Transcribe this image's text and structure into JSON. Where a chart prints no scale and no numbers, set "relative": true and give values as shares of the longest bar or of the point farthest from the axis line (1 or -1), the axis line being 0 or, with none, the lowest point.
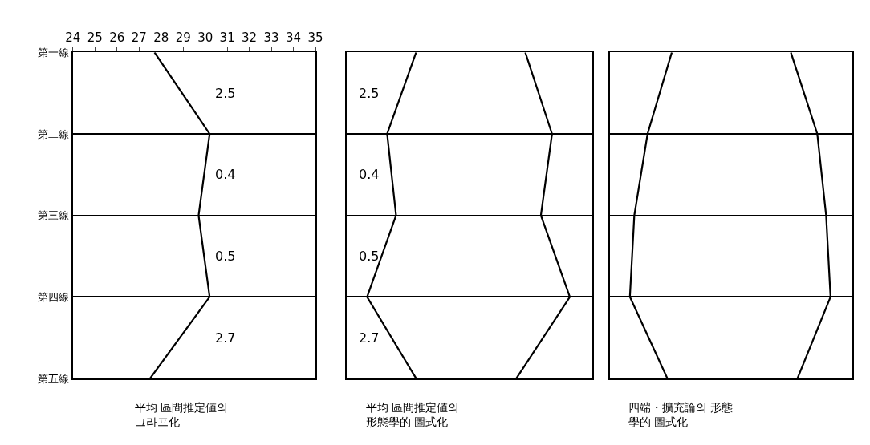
{
  "chart_data": [
    {
      "type": "line",
      "orientation": "horizontal",
      "title": "平均 區間推定値의\n그라프化",
      "categories": [
        "第一線",
        "第二線",
        "第三線",
        "第四線",
        "第五線"
      ],
      "values": [
        27.7,
        30.2,
        29.7,
        30.2,
        27.5
      ],
      "color": "#000000",
      "xlim": [
        24,
        35
      ],
      "xticks": [
        24,
        25,
        26,
        27,
        28,
        29,
        30,
        31,
        32,
        33,
        34,
        35
      ],
      "grid": "y",
      "annotations": [
        "2.5",
        "0.4",
        "0.5",
        "2.7"
      ]
    },
    {
      "type": "line",
      "orientation": "horizontal",
      "relative": true,
      "title": "平均 區間推定値의\n形態學的 圖式化",
      "categories": [
        null,
        null,
        null,
        null,
        null
      ],
      "grid": "y",
      "series": [
        {
          "color": "#000000",
          "values": [
            0.31,
            0.18,
            0.22,
            0.09,
            0.31
          ]
        },
        {
          "color": "#000000",
          "values": [
            0.8,
            0.92,
            0.87,
            1.0,
            0.76
          ]
        }
      ],
      "annotations": [
        "2.5",
        "0.4",
        "0.5",
        "2.7"
      ]
    },
    {
      "type": "line",
      "orientation": "horizontal",
      "relative": true,
      "title": "四端・擴充論의 形態學的 圖式化",
      "categories": [
        null,
        null,
        null,
        null,
        null
      ],
      "grid": "y",
      "series": [
        {
          "color": "#000000",
          "values": [
            0.28,
            0.17,
            0.11,
            0.09,
            0.26
          ]
        },
        {
          "color": "#000000",
          "values": [
            0.82,
            0.94,
            0.98,
            1.0,
            0.85
          ]
        }
      ]
    }
  ]
}
